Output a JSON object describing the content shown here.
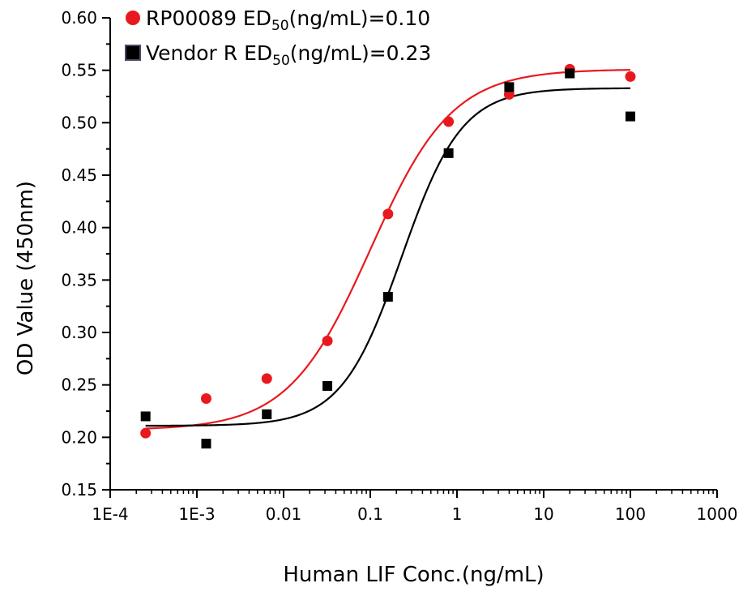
{
  "chart_data": {
    "type": "scatter",
    "x_scale": "log",
    "xlabel": "Human LIF Conc.(ng/mL)",
    "ylabel": "OD Value (450nm)",
    "xlim": [
      0.0001,
      1000
    ],
    "ylim": [
      0.15,
      0.6
    ],
    "x_ticks": [
      {
        "value": 0.0001,
        "label": "1E-4"
      },
      {
        "value": 0.001,
        "label": "1E-3"
      },
      {
        "value": 0.01,
        "label": "0.01"
      },
      {
        "value": 0.1,
        "label": "0.1"
      },
      {
        "value": 1,
        "label": "1"
      },
      {
        "value": 10,
        "label": "10"
      },
      {
        "value": 100,
        "label": "100"
      },
      {
        "value": 1000,
        "label": "1000"
      }
    ],
    "y_ticks": [
      {
        "value": 0.15,
        "label": "0.15"
      },
      {
        "value": 0.2,
        "label": "0.20"
      },
      {
        "value": 0.25,
        "label": "0.25"
      },
      {
        "value": 0.3,
        "label": "0.30"
      },
      {
        "value": 0.35,
        "label": "0.35"
      },
      {
        "value": 0.4,
        "label": "0.40"
      },
      {
        "value": 0.45,
        "label": "0.45"
      },
      {
        "value": 0.5,
        "label": "0.50"
      },
      {
        "value": 0.55,
        "label": "0.55"
      },
      {
        "value": 0.6,
        "label": "0.60"
      }
    ],
    "legend_position": "top-left",
    "grid": false,
    "series": [
      {
        "legend_prefix": "RP00089 ED",
        "legend_sub": "50",
        "legend_suffix": "(ng/mL)=0.10",
        "marker": "circle",
        "color": "#e8191e",
        "x": [
          0.000256,
          0.00128,
          0.0064,
          0.032,
          0.16,
          0.8,
          4,
          20,
          100
        ],
        "y": [
          0.204,
          0.237,
          0.256,
          0.292,
          0.413,
          0.501,
          0.527,
          0.551,
          0.544
        ],
        "fit": {
          "bottom": 0.207,
          "top": 0.551,
          "ec50": 0.1,
          "hill": 0.92
        }
      },
      {
        "legend_prefix": "Vendor R ED",
        "legend_sub": "50",
        "legend_suffix": "(ng/mL)=0.23",
        "marker": "square",
        "color": "#000000",
        "x": [
          0.000256,
          0.00128,
          0.0064,
          0.032,
          0.16,
          0.8,
          4,
          20,
          100
        ],
        "y": [
          0.22,
          0.194,
          0.222,
          0.249,
          0.334,
          0.471,
          0.534,
          0.547,
          0.506
        ],
        "fit": {
          "bottom": 0.211,
          "top": 0.533,
          "ec50": 0.23,
          "hill": 1.25
        }
      }
    ]
  }
}
